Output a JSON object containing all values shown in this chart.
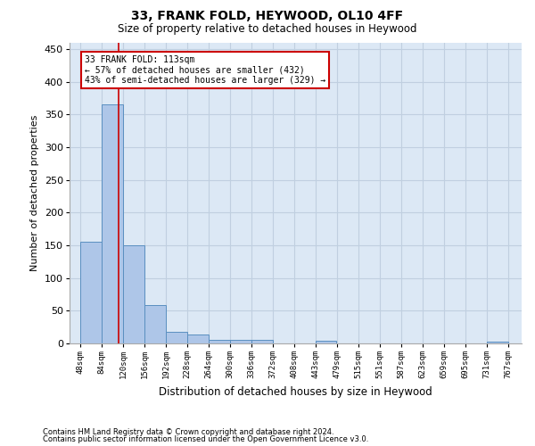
{
  "title": "33, FRANK FOLD, HEYWOOD, OL10 4FF",
  "subtitle": "Size of property relative to detached houses in Heywood",
  "xlabel": "Distribution of detached houses by size in Heywood",
  "ylabel": "Number of detached properties",
  "footer_line1": "Contains HM Land Registry data © Crown copyright and database right 2024.",
  "footer_line2": "Contains public sector information licensed under the Open Government Licence v3.0.",
  "annotation_line1": "33 FRANK FOLD: 113sqm",
  "annotation_line2": "← 57% of detached houses are smaller (432)",
  "annotation_line3": "43% of semi-detached houses are larger (329) →",
  "bar_left_edges": [
    48,
    84,
    120,
    156,
    192,
    228,
    264,
    300,
    336,
    372,
    408,
    443,
    479,
    515,
    551,
    587,
    623,
    659,
    695,
    731
  ],
  "bar_widths": [
    36,
    36,
    36,
    36,
    36,
    36,
    36,
    36,
    36,
    36,
    35,
    36,
    36,
    36,
    36,
    36,
    36,
    36,
    36,
    36
  ],
  "bar_heights": [
    155,
    365,
    150,
    58,
    18,
    13,
    5,
    5,
    6,
    0,
    0,
    4,
    0,
    0,
    0,
    0,
    0,
    0,
    0,
    3
  ],
  "bar_color": "#aec6e8",
  "bar_edge_color": "#5a8fc0",
  "background_color": "#ffffff",
  "plot_bg_color": "#dce8f5",
  "grid_color": "#c0cfe0",
  "vline_x": 113,
  "vline_color": "#cc0000",
  "annotation_box_edge_color": "#cc0000",
  "ylim": [
    0,
    460
  ],
  "yticks": [
    0,
    50,
    100,
    150,
    200,
    250,
    300,
    350,
    400,
    450
  ],
  "xtick_labels": [
    "48sqm",
    "84sqm",
    "120sqm",
    "156sqm",
    "192sqm",
    "228sqm",
    "264sqm",
    "300sqm",
    "336sqm",
    "372sqm",
    "408sqm",
    "443sqm",
    "479sqm",
    "515sqm",
    "551sqm",
    "587sqm",
    "623sqm",
    "659sqm",
    "695sqm",
    "731sqm",
    "767sqm"
  ],
  "xtick_positions": [
    48,
    84,
    120,
    156,
    192,
    228,
    264,
    300,
    336,
    372,
    408,
    443,
    479,
    515,
    551,
    587,
    623,
    659,
    695,
    731,
    767
  ],
  "xlim_left": 30,
  "xlim_right": 790
}
